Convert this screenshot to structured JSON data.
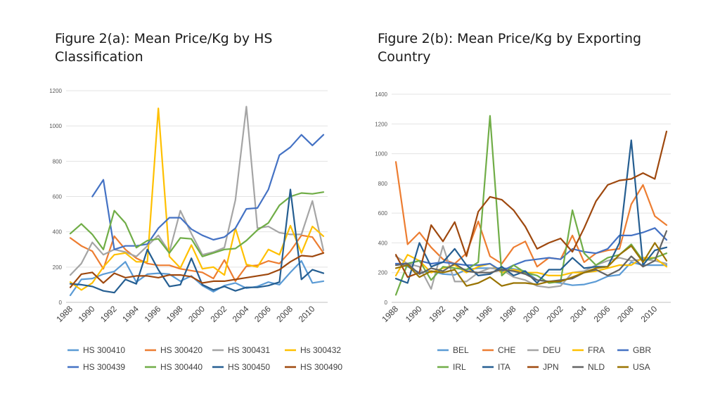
{
  "panels": [
    {
      "title_prefix": "Figure 2(a):",
      "title_text": "Mean Price/Kg by HS Classification"
    },
    {
      "title_prefix": "Figure 2(b):",
      "title_text": "Mean Price/Kg by Exporting Country"
    }
  ],
  "chart_data": [
    {
      "type": "line",
      "title": "Figure 2(a): Mean Price/Kg by HS Classification",
      "xlabel": "",
      "ylabel": "",
      "x": [
        1988,
        1989,
        1990,
        1991,
        1992,
        1993,
        1994,
        1995,
        1996,
        1997,
        1998,
        1999,
        2000,
        2001,
        2002,
        2003,
        2004,
        2005,
        2006,
        2007,
        2008,
        2009,
        2010,
        2011
      ],
      "x_ticks": [
        "1988",
        "1990",
        "1992",
        "1994",
        "1996",
        "1998",
        "2000",
        "2002",
        "2004",
        "2006",
        "2008",
        "2010"
      ],
      "ylim": [
        0,
        1200
      ],
      "y_ticks": [
        0,
        200,
        400,
        600,
        800,
        1000,
        1200
      ],
      "grid": true,
      "legend": "bottom",
      "series": [
        {
          "name": "HS 300410",
          "color": "#5B9BD5",
          "values": [
            40,
            130,
            135,
            160,
            175,
            230,
            115,
            160,
            165,
            160,
            120,
            150,
            95,
            60,
            95,
            110,
            80,
            90,
            115,
            100,
            170,
            235,
            110,
            120
          ]
        },
        {
          "name": "HS 300420",
          "color": "#ED7D31",
          "values": [
            365,
            320,
            290,
            190,
            375,
            300,
            250,
            220,
            210,
            210,
            190,
            180,
            170,
            135,
            240,
            120,
            205,
            210,
            235,
            220,
            290,
            380,
            370,
            280
          ]
        },
        {
          "name": "HS 300431",
          "color": "#A5A5A5",
          "values": [
            155,
            220,
            340,
            270,
            300,
            285,
            260,
            320,
            380,
            285,
            520,
            390,
            270,
            285,
            310,
            580,
            1110,
            420,
            430,
            395,
            385,
            385,
            575,
            295
          ]
        },
        {
          "name": "Hs 300432",
          "color": "#FFC000",
          "values": [
            115,
            70,
            110,
            200,
            270,
            280,
            230,
            230,
            1100,
            260,
            195,
            325,
            190,
            200,
            155,
            420,
            215,
            200,
            300,
            270,
            435,
            280,
            430,
            375
          ]
        },
        {
          "name": "HS 300439",
          "color": "#4472C4",
          "values": [
            null,
            null,
            600,
            695,
            300,
            320,
            320,
            330,
            420,
            480,
            480,
            415,
            380,
            355,
            370,
            420,
            530,
            535,
            640,
            835,
            880,
            950,
            890,
            950
          ]
        },
        {
          "name": "HS 300440",
          "color": "#70AD47",
          "values": [
            390,
            445,
            385,
            300,
            520,
            450,
            310,
            350,
            360,
            280,
            365,
            360,
            260,
            280,
            300,
            305,
            350,
            410,
            450,
            550,
            600,
            620,
            615,
            625
          ]
        },
        {
          "name": "HS 300450",
          "color": "#255E91",
          "values": [
            105,
            100,
            90,
            65,
            55,
            130,
            105,
            300,
            185,
            90,
            100,
            250,
            100,
            70,
            90,
            65,
            85,
            85,
            95,
            115,
            640,
            130,
            185,
            165
          ]
        },
        {
          "name": "HS 300490",
          "color": "#9E480E",
          "values": [
            85,
            160,
            170,
            110,
            165,
            140,
            150,
            150,
            140,
            155,
            155,
            145,
            110,
            120,
            120,
            130,
            140,
            150,
            160,
            185,
            230,
            265,
            260,
            280
          ]
        }
      ]
    },
    {
      "type": "line",
      "title": "Figure 2(b): Mean Price/Kg by Exporting Country",
      "xlabel": "",
      "ylabel": "",
      "x": [
        1988,
        1989,
        1990,
        1991,
        1992,
        1993,
        1994,
        1995,
        1996,
        1997,
        1998,
        1999,
        2000,
        2001,
        2002,
        2003,
        2004,
        2005,
        2006,
        2007,
        2008,
        2009,
        2010,
        2011
      ],
      "x_ticks": [
        "1988",
        "1990",
        "1992",
        "1994",
        "1996",
        "1998",
        "2000",
        "2002",
        "2004",
        "2006",
        "2008",
        "2010"
      ],
      "ylim": [
        0,
        1400
      ],
      "y_ticks": [
        0,
        200,
        400,
        600,
        800,
        1000,
        1200,
        1400
      ],
      "grid": true,
      "legend": "bottom",
      "series": [
        {
          "name": "BEL",
          "color": "#5B9BD5",
          "values": [
            260,
            240,
            200,
            210,
            190,
            185,
            220,
            230,
            230,
            230,
            225,
            210,
            150,
            140,
            130,
            115,
            120,
            140,
            175,
            185,
            270,
            250,
            250,
            250
          ]
        },
        {
          "name": "CHE",
          "color": "#ED7D31",
          "values": [
            945,
            390,
            470,
            370,
            290,
            260,
            330,
            545,
            310,
            260,
            370,
            410,
            240,
            300,
            290,
            450,
            270,
            330,
            350,
            360,
            660,
            790,
            580,
            520
          ]
        },
        {
          "name": "DEU",
          "color": "#A5A5A5",
          "values": [
            310,
            260,
            240,
            90,
            380,
            140,
            140,
            200,
            230,
            220,
            170,
            150,
            110,
            100,
            110,
            200,
            210,
            250,
            280,
            300,
            280,
            290,
            280,
            260
          ]
        },
        {
          "name": "FRA",
          "color": "#FFC000",
          "values": [
            180,
            320,
            280,
            200,
            230,
            250,
            200,
            240,
            260,
            200,
            220,
            200,
            200,
            180,
            180,
            200,
            200,
            210,
            230,
            250,
            250,
            300,
            300,
            240
          ]
        },
        {
          "name": "GBR",
          "color": "#4472C4",
          "values": [
            260,
            260,
            280,
            260,
            270,
            260,
            250,
            250,
            260,
            210,
            250,
            280,
            290,
            300,
            290,
            360,
            340,
            330,
            360,
            450,
            450,
            470,
            500,
            420
          ]
        },
        {
          "name": "IRL",
          "color": "#70AD47",
          "values": [
            50,
            260,
            280,
            150,
            240,
            230,
            220,
            270,
            1255,
            180,
            250,
            200,
            180,
            130,
            140,
            620,
            330,
            250,
            300,
            320,
            390,
            280,
            300,
            330
          ]
        },
        {
          "name": "ITA",
          "color": "#255E91",
          "values": [
            160,
            130,
            400,
            240,
            270,
            360,
            250,
            180,
            190,
            240,
            180,
            210,
            130,
            220,
            220,
            300,
            230,
            240,
            240,
            400,
            1090,
            250,
            350,
            370
          ]
        },
        {
          "name": "JPN",
          "color": "#9E480E",
          "values": [
            320,
            170,
            200,
            520,
            410,
            540,
            310,
            610,
            710,
            690,
            620,
            510,
            360,
            400,
            430,
            340,
            500,
            680,
            790,
            820,
            830,
            870,
            830,
            1150
          ]
        },
        {
          "name": "NLD",
          "color": "#636363",
          "values": [
            250,
            260,
            190,
            230,
            210,
            260,
            210,
            200,
            200,
            220,
            210,
            190,
            150,
            140,
            150,
            160,
            200,
            220,
            180,
            220,
            310,
            240,
            280,
            480
          ]
        },
        {
          "name": "USA",
          "color": "#997300",
          "values": [
            230,
            250,
            170,
            210,
            200,
            220,
            110,
            130,
            170,
            110,
            130,
            130,
            120,
            140,
            140,
            170,
            200,
            230,
            240,
            320,
            380,
            270,
            400,
            280
          ]
        }
      ]
    }
  ]
}
